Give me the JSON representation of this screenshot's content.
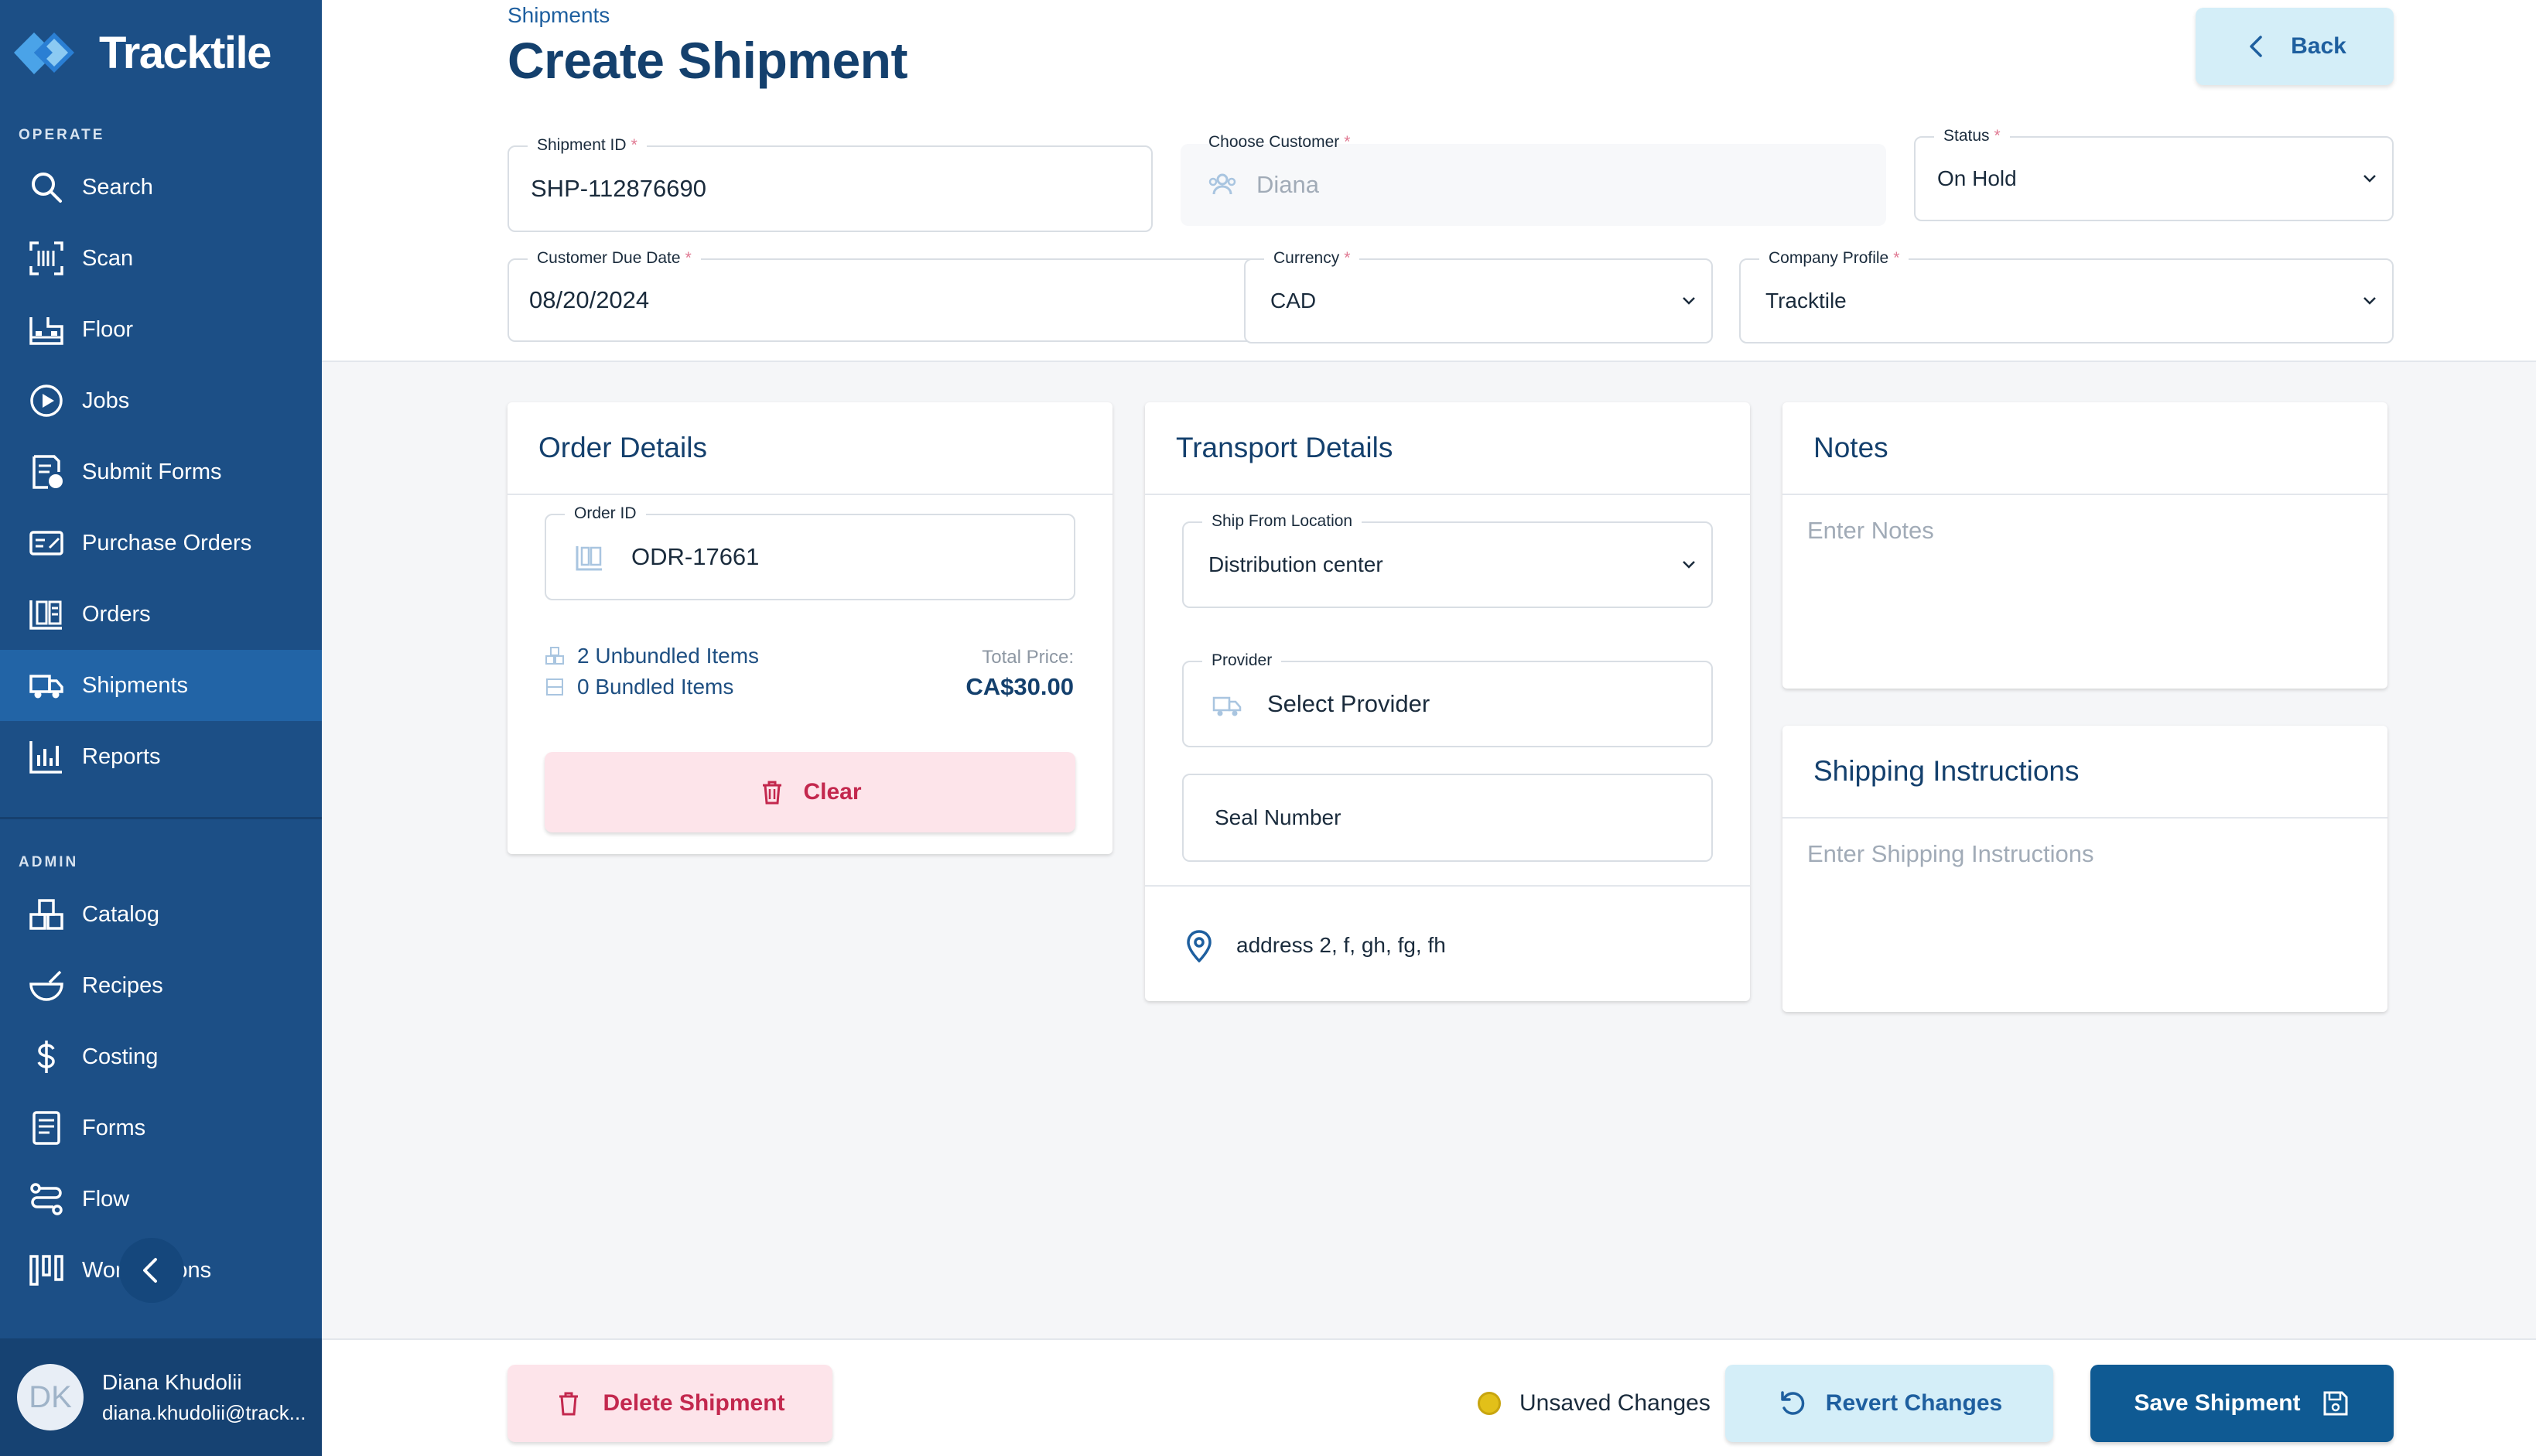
{
  "app": {
    "name": "Tracktile"
  },
  "sidebar": {
    "operate_label": "OPERATE",
    "admin_label": "ADMIN",
    "operate_items": [
      {
        "label": "Search",
        "icon": "search-icon"
      },
      {
        "label": "Scan",
        "icon": "scan-icon"
      },
      {
        "label": "Floor",
        "icon": "floor-icon"
      },
      {
        "label": "Jobs",
        "icon": "jobs-icon"
      },
      {
        "label": "Submit Forms",
        "icon": "submit-forms-icon"
      },
      {
        "label": "Purchase Orders",
        "icon": "purchase-orders-icon"
      },
      {
        "label": "Orders",
        "icon": "orders-icon"
      },
      {
        "label": "Shipments",
        "icon": "shipments-icon",
        "active": true
      },
      {
        "label": "Reports",
        "icon": "reports-icon"
      }
    ],
    "admin_items": [
      {
        "label": "Catalog",
        "icon": "catalog-icon"
      },
      {
        "label": "Recipes",
        "icon": "recipes-icon"
      },
      {
        "label": "Costing",
        "icon": "dollar-icon"
      },
      {
        "label": "Forms",
        "icon": "forms-icon"
      },
      {
        "label": "Flow",
        "icon": "flow-icon"
      },
      {
        "label": "Workstations",
        "icon": "workstations-icon"
      }
    ],
    "user": {
      "initials": "DK",
      "name": "Diana Khudolii",
      "email": "diana.khudolii@track..."
    }
  },
  "header": {
    "breadcrumb": "Shipments",
    "title": "Create Shipment",
    "back_label": "Back"
  },
  "form": {
    "shipment_id": {
      "label": "Shipment ID",
      "value": "SHP-112876690"
    },
    "customer": {
      "label": "Choose Customer",
      "value": "Diana"
    },
    "status": {
      "label": "Status",
      "value": "On Hold"
    },
    "due_date": {
      "label": "Customer Due Date",
      "value": "08/20/2024"
    },
    "currency": {
      "label": "Currency",
      "value": "CAD"
    },
    "company_profile": {
      "label": "Company Profile",
      "value": "Tracktile"
    },
    "required_mark": "*"
  },
  "order_details": {
    "title": "Order Details",
    "order_id_label": "Order ID",
    "order_id_value": "ODR-17661",
    "unbundled": "2 Unbundled Items",
    "bundled": "0 Bundled Items",
    "total_label": "Total Price:",
    "total_value": "CA$30.00",
    "clear_label": "Clear"
  },
  "transport_details": {
    "title": "Transport Details",
    "ship_from_label": "Ship From Location",
    "ship_from_value": "Distribution center",
    "provider_label": "Provider",
    "provider_value": "Select Provider",
    "seal_number": "Seal Number",
    "address": "address 2, f, gh, fg, fh"
  },
  "notes": {
    "title": "Notes",
    "placeholder": "Enter Notes"
  },
  "shipping_instructions": {
    "title": "Shipping Instructions",
    "placeholder": "Enter Shipping Instructions"
  },
  "footer": {
    "delete_label": "Delete Shipment",
    "unsaved_label": "Unsaved Changes",
    "revert_label": "Revert Changes",
    "save_label": "Save Shipment"
  },
  "colors": {
    "sidebar": "#1c4f86",
    "sidebar_active": "#2264a6",
    "primary": "#0f5a93",
    "danger": "#c3284e",
    "unsaved_dot": "#e2c019"
  }
}
